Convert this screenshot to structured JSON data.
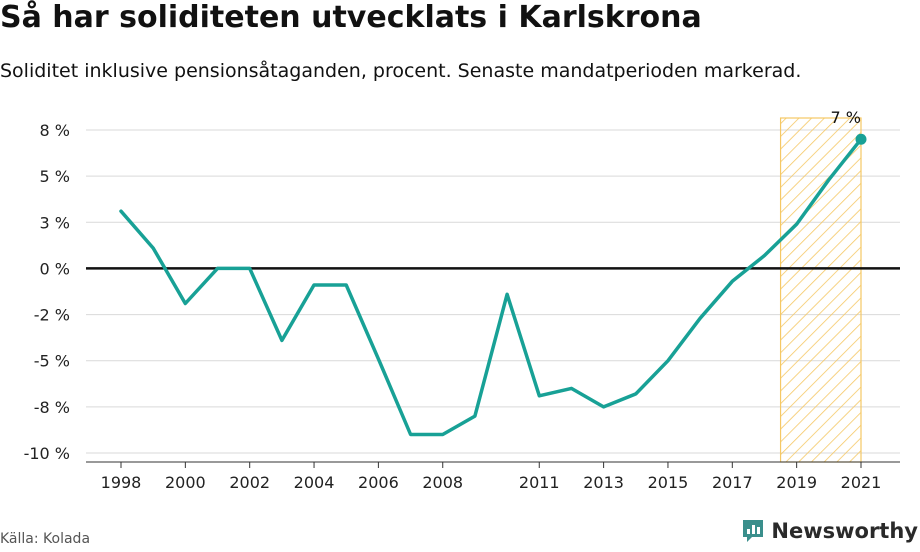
{
  "header": {
    "title": "Så har soliditeten utvecklats i Karlskrona",
    "subtitle": "Soliditet inklusive pensionsåtaganden, procent. Senaste mandatperioden markerad."
  },
  "footer": {
    "source": "Källa: Kolada",
    "brand": "Newsworthy",
    "brand_icon": "chart-bubble-icon",
    "brand_color": "#3a8f8c"
  },
  "chart_data": {
    "type": "line",
    "title": "Så har soliditeten utvecklats i Karlskrona",
    "subtitle": "Soliditet inklusive pensionsåtaganden, procent. Senaste mandatperioden markerad.",
    "x": [
      1998,
      1999,
      2000,
      2001,
      2002,
      2003,
      2004,
      2005,
      2006,
      2007,
      2008,
      2009,
      2010,
      2011,
      2012,
      2013,
      2014,
      2015,
      2016,
      2017,
      2018,
      2019,
      2020,
      2021
    ],
    "series": [
      {
        "values": [
          3.1,
          1.1,
          -1.9,
          0.0,
          0.0,
          -3.9,
          -0.9,
          -0.9,
          -4.9,
          -9.0,
          -9.0,
          -8.0,
          -1.4,
          -6.9,
          -6.5,
          -7.5,
          -6.8,
          -5.0,
          -2.7,
          -0.7,
          0.7,
          2.4,
          4.8,
          7.0
        ],
        "color": "#18a196"
      }
    ],
    "x_ticks": [
      "1998",
      "2000",
      "2002",
      "2004",
      "2006",
      "2008",
      "2011",
      "2013",
      "2015",
      "2017",
      "2019",
      "2021"
    ],
    "x_tick_values": [
      1998,
      2000,
      2002,
      2004,
      2006,
      2008,
      2011,
      2013,
      2015,
      2017,
      2019,
      2021
    ],
    "y_ticks": [
      "8 %",
      "5 %",
      "3 %",
      "0 %",
      "-2 %",
      "-5 %",
      "-8 %",
      "-10 %"
    ],
    "y_tick_values": [
      7.5,
      5,
      2.5,
      0,
      -2.5,
      -5,
      -7.5,
      -10
    ],
    "ylim": [
      -10,
      7.5
    ],
    "xlim": [
      1998,
      2021
    ],
    "grid": true,
    "zero_line": true,
    "highlight": {
      "from": 2018.5,
      "to": 2021,
      "color": "#f5c865"
    },
    "end_label": "7 %",
    "xlabel": "",
    "ylabel": ""
  }
}
